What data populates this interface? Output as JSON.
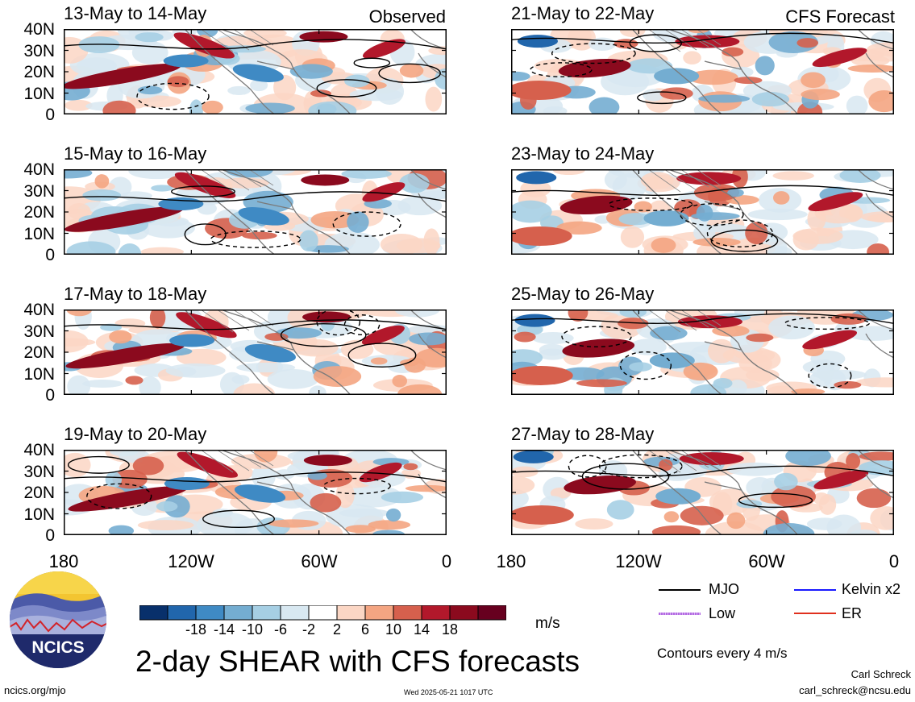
{
  "panels": [
    {
      "title": "13-May to 14-May",
      "tag": "Observed"
    },
    {
      "title": "21-May to 22-May",
      "tag": "CFS Forecast"
    },
    {
      "title": "15-May to 16-May",
      "tag": ""
    },
    {
      "title": "23-May to 24-May",
      "tag": ""
    },
    {
      "title": "17-May to 18-May",
      "tag": ""
    },
    {
      "title": "25-May to 26-May",
      "tag": ""
    },
    {
      "title": "19-May to 20-May",
      "tag": ""
    },
    {
      "title": "27-May to 28-May",
      "tag": ""
    }
  ],
  "lat_labels": [
    "40N",
    "30N",
    "20N",
    "10N",
    "0"
  ],
  "lon_labels": [
    "180",
    "120W",
    "60W",
    "0"
  ],
  "colorbar": {
    "labels": [
      "-18",
      "-14",
      "-10",
      "-6",
      "-2",
      "2",
      "6",
      "10",
      "14",
      "18"
    ],
    "unit": "m/s",
    "colors": [
      "#08306b",
      "#2166ac",
      "#3f8ac4",
      "#74add1",
      "#a6cfe4",
      "#d8e8f1",
      "#ffffff",
      "#fbd6c4",
      "#f4a582",
      "#d6604d",
      "#b2182b",
      "#8b0a1e",
      "#67001f"
    ]
  },
  "legend": [
    {
      "label": "MJO",
      "color": "#000000"
    },
    {
      "label": "Kelvin x2",
      "color": "#1a1aff"
    },
    {
      "label": "Low",
      "color": "#b36ae2"
    },
    {
      "label": "ER",
      "color": "#e0301e"
    }
  ],
  "contour_note": "Contours every 4 m/s",
  "main_title": "2-day SHEAR with CFS forecasts",
  "logo_text": "NCICS",
  "footer": {
    "url": "ncics.org/mjo",
    "timestamp": "Wed 2025-05-21 1017 UTC",
    "author": "Carl Schreck",
    "email": "carl_schreck@ncsu.edu"
  }
}
